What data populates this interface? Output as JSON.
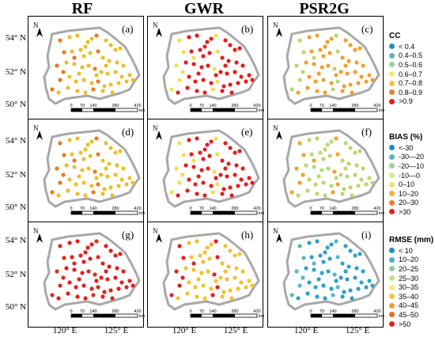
{
  "columns": [
    "RF",
    "GWR",
    "PSR2G"
  ],
  "y_ticks": [
    "54° N",
    "52° N",
    "50° N"
  ],
  "x_ticks": [
    "120° E",
    "125° E"
  ],
  "scale": {
    "ticks": [
      "0",
      "70",
      "140",
      "280",
      "420"
    ],
    "unit": "km"
  },
  "north": "N",
  "panels": [
    {
      "label": "(a)",
      "metric": "cc",
      "fill": "#f5dc50",
      "dots": "#e8c02e",
      "acc": "#e97a22"
    },
    {
      "label": "(d)",
      "metric": "cc",
      "fill": "#f5dc50",
      "dots": "#e8c02e",
      "acc": "#e97a22"
    },
    {
      "label": "(g)",
      "metric": "cc",
      "fill": "#e02020",
      "dots": "#e02020",
      "acc": "#d62d20"
    },
    {
      "label": "(b)",
      "metric": "bias",
      "fill": "#e02020",
      "dots": "#e02020",
      "acc": "#f5dc50"
    },
    {
      "label": "(e)",
      "metric": "bias",
      "fill": "#e02020",
      "dots": "#e02020",
      "acc": "#f5dc50"
    },
    {
      "label": "(h)",
      "metric": "bias",
      "fill": "#f5dc50",
      "dots": "#f1c232",
      "acc": "#e02020"
    },
    {
      "label": "(c)",
      "metric": "rmse",
      "fill": "#f0a030",
      "dots": "#f0a030",
      "acc": "#b9d772"
    },
    {
      "label": "(f)",
      "metric": "rmse",
      "fill": "#b9d772",
      "dots": "#b9d772",
      "acc": "#f0a030"
    },
    {
      "label": "(i)",
      "metric": "rmse",
      "fill": "#2fa0c5",
      "dots": "#2fa0c5",
      "acc": "#56b6c8"
    }
  ],
  "legends": [
    {
      "title": "CC",
      "items": [
        {
          "label": "< 0.4",
          "color": "#1f8fb8"
        },
        {
          "label": "0.4–0.5",
          "color": "#5ab4c2"
        },
        {
          "label": "0.5–0.6",
          "color": "#9fd0a2"
        },
        {
          "label": "0.6–0.7",
          "color": "#f3e87a"
        },
        {
          "label": "0.7–0.8",
          "color": "#f5c24a"
        },
        {
          "label": "0.8–0.9",
          "color": "#ec8030"
        },
        {
          "label": ">0.9",
          "color": "#e02020"
        }
      ]
    },
    {
      "title": "BIAS (%)",
      "items": [
        {
          "label": "<-30",
          "color": "#1f8fb8"
        },
        {
          "label": "-30—20",
          "color": "#5ab4c2"
        },
        {
          "label": "-20—10",
          "color": "#9fd0a2"
        },
        {
          "label": "-10—0",
          "color": "#d7ea90"
        },
        {
          "label": "0–10",
          "color": "#f7e06a"
        },
        {
          "label": "10–20",
          "color": "#f5b03c"
        },
        {
          "label": "20–30",
          "color": "#ec7a2a"
        },
        {
          "label": ">30",
          "color": "#e02020"
        }
      ]
    },
    {
      "title": "RMSE (mm)",
      "items": [
        {
          "label": "< 10",
          "color": "#1f8fb8"
        },
        {
          "label": "10–20",
          "color": "#4aaec4"
        },
        {
          "label": "20–25",
          "color": "#8ccaa6"
        },
        {
          "label": "25–30",
          "color": "#c8e08a"
        },
        {
          "label": "30–35",
          "color": "#f3e87a"
        },
        {
          "label": "35–40",
          "color": "#f5c24a"
        },
        {
          "label": "40–45",
          "color": "#f0a030"
        },
        {
          "label": "45–50",
          "color": "#ec6a26"
        },
        {
          "label": ">50",
          "color": "#e02020"
        }
      ]
    }
  ]
}
